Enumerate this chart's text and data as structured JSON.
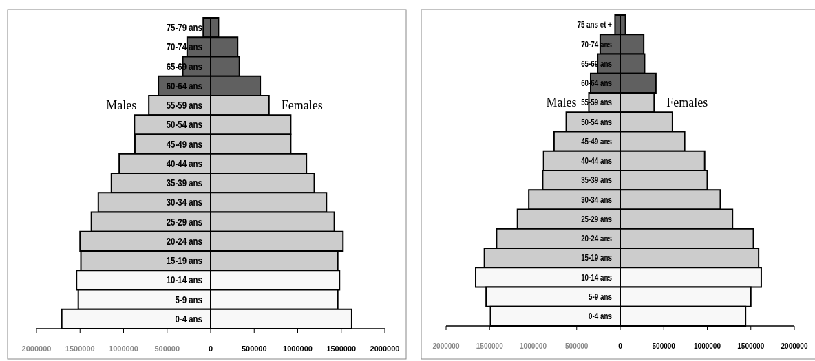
{
  "chart_data": [
    {
      "type": "bar",
      "orientation": "horizontal",
      "stacked": true,
      "categories": [
        "75-79 ans",
        "70-74 ans",
        "65-69 ans",
        "60-64 ans",
        "55-59 ans",
        "50-54 ans",
        "45-49 ans",
        "40-44 ans",
        "35-39 ans",
        "30-34 ans",
        "25-29 ans",
        "20-24 ans",
        "15-19 ans",
        "10-14 ans",
        "5-9 ans",
        "0-4 ans"
      ],
      "series": [
        {
          "name": "Males",
          "values": [
            -85000,
            -270000,
            -320000,
            -600000,
            -710000,
            -875000,
            -870000,
            -1050000,
            -1140000,
            -1290000,
            -1370000,
            -1500000,
            -1490000,
            -1540000,
            -1520000,
            -1710000
          ],
          "colors": [
            "#606060",
            "#606060",
            "#606060",
            "#606060",
            "#cccccc",
            "#cccccc",
            "#cccccc",
            "#cccccc",
            "#cccccc",
            "#cccccc",
            "#cccccc",
            "#cccccc",
            "#cccccc",
            "#f8f8f8",
            "#f8f8f8",
            "#f8f8f8"
          ]
        },
        {
          "name": "Females",
          "values": [
            90000,
            310000,
            330000,
            570000,
            670000,
            920000,
            920000,
            1100000,
            1190000,
            1330000,
            1420000,
            1520000,
            1460000,
            1480000,
            1460000,
            1620000
          ],
          "colors": [
            "#606060",
            "#606060",
            "#606060",
            "#606060",
            "#cccccc",
            "#cccccc",
            "#cccccc",
            "#cccccc",
            "#cccccc",
            "#cccccc",
            "#cccccc",
            "#cccccc",
            "#cccccc",
            "#f8f8f8",
            "#f8f8f8",
            "#f8f8f8"
          ]
        }
      ],
      "xlim": [
        -2000000,
        2000000
      ],
      "xticks": [
        {
          "value": -2000000,
          "label": "2000000"
        },
        {
          "value": -1500000,
          "label": "1500000"
        },
        {
          "value": -1000000,
          "label": "1000000"
        },
        {
          "value": -500000,
          "label": "500000"
        },
        0,
        500000,
        1000000,
        1500000,
        2000000
      ]
    },
    {
      "type": "bar",
      "orientation": "horizontal",
      "stacked": true,
      "categories": [
        "75 ans et +",
        "70-74 ans",
        "65-69 ans",
        "60-64 ans",
        "55-59 ans",
        "50-54 ans",
        "45-49 ans",
        "40-44 ans",
        "35-39 ans",
        "30-34 ans",
        "25-29 ans",
        "20-24 ans",
        "15-19 ans",
        "10-14 ans",
        "5-9 ans",
        "0-4 ans"
      ],
      "series": [
        {
          "name": "Males",
          "values": [
            -60000,
            -230000,
            -260000,
            -340000,
            -360000,
            -620000,
            -760000,
            -880000,
            -890000,
            -1050000,
            -1180000,
            -1420000,
            -1560000,
            -1660000,
            -1540000,
            -1490000
          ],
          "colors": [
            "#606060",
            "#606060",
            "#606060",
            "#606060",
            "#cccccc",
            "#cccccc",
            "#cccccc",
            "#cccccc",
            "#cccccc",
            "#cccccc",
            "#cccccc",
            "#cccccc",
            "#cccccc",
            "#f8f8f8",
            "#f8f8f8",
            "#f8f8f8"
          ]
        },
        {
          "name": "Females",
          "values": [
            60000,
            270000,
            280000,
            410000,
            390000,
            600000,
            740000,
            970000,
            1000000,
            1150000,
            1290000,
            1530000,
            1590000,
            1620000,
            1500000,
            1440000
          ],
          "colors": [
            "#606060",
            "#606060",
            "#606060",
            "#606060",
            "#cccccc",
            "#cccccc",
            "#cccccc",
            "#cccccc",
            "#cccccc",
            "#cccccc",
            "#cccccc",
            "#cccccc",
            "#cccccc",
            "#f8f8f8",
            "#f8f8f8",
            "#f8f8f8"
          ]
        }
      ],
      "xlim": [
        -2000000,
        2000000
      ],
      "xticks": [
        {
          "value": -2000000,
          "label": "2000000"
        },
        {
          "value": -1500000,
          "label": "1500000"
        },
        {
          "value": -1000000,
          "label": "1000000"
        },
        {
          "value": -500000,
          "label": "500000"
        },
        0,
        500000,
        1000000,
        1500000,
        2000000
      ]
    }
  ]
}
